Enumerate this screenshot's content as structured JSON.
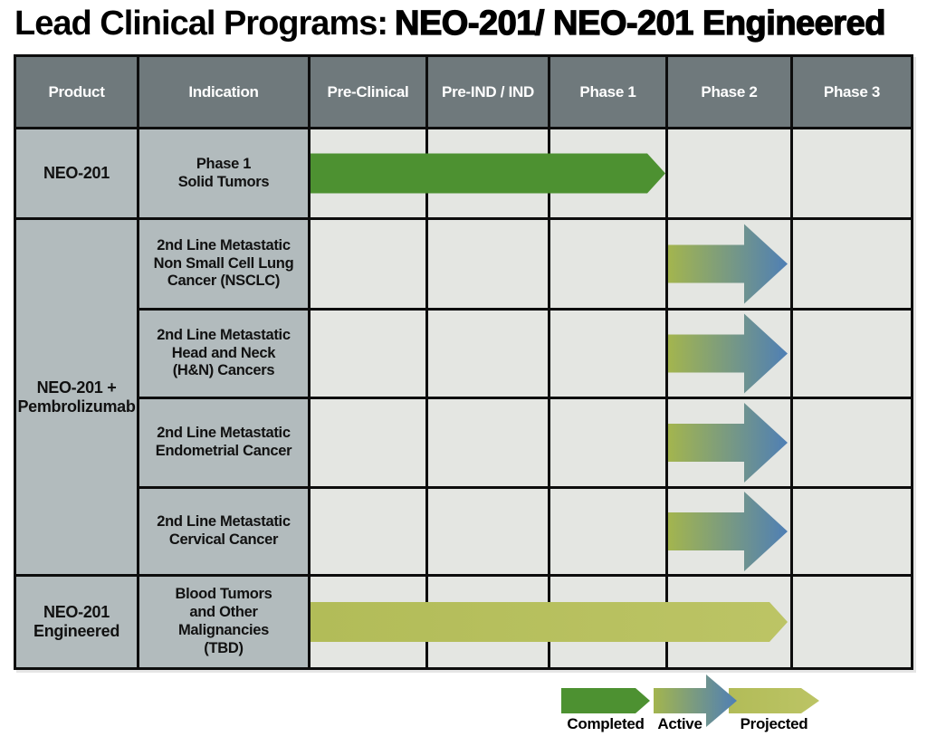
{
  "title": {
    "prefix": "Lead Clinical Programs:",
    "highlight": "NEO-201/ NEO-201 Engineered"
  },
  "colors": {
    "completed": "#4d9131",
    "projected": "#b2bc58",
    "active_start": "#a3b54e",
    "active_end": "#4f7fb5",
    "header_bg": "#6f797c",
    "label_bg": "#b2bbbd",
    "lane_bg": "#e4e6e2",
    "border": "#0d0d0d"
  },
  "table": {
    "columns": [
      "Product",
      "Indication",
      "Pre-Clinical",
      "Pre-IND / IND",
      "Phase 1",
      "Phase 2",
      "Phase 3"
    ],
    "products": [
      {
        "name": "NEO-201",
        "rows": [
          {
            "indication": "Phase 1\nSolid Tumors",
            "status": "completed",
            "start": "Pre-Clinical",
            "end": "Phase 1"
          }
        ]
      },
      {
        "name": "NEO-201 +\nPembrolizumab",
        "rows": [
          {
            "indication": "2nd Line Metastatic\nNon Small Cell Lung\nCancer (NSCLC)",
            "status": "active",
            "start": "Phase 2",
            "end": "Phase 2"
          },
          {
            "indication": "2nd Line Metastatic\nHead and Neck\n(H&N) Cancers",
            "status": "active",
            "start": "Phase 2",
            "end": "Phase 2"
          },
          {
            "indication": "2nd Line Metastatic\nEndometrial Cancer",
            "status": "active",
            "start": "Phase 2",
            "end": "Phase 2"
          },
          {
            "indication": "2nd Line Metastatic\nCervical Cancer",
            "status": "active",
            "start": "Phase 2",
            "end": "Phase 2"
          }
        ]
      },
      {
        "name": "NEO-201\nEngineered",
        "rows": [
          {
            "indication": "Blood Tumors\nand Other\nMalignancies\n(TBD)",
            "status": "projected",
            "start": "Pre-Clinical",
            "end": "Phase 2"
          }
        ]
      }
    ]
  },
  "legend": [
    {
      "label": "Completed",
      "status": "completed"
    },
    {
      "label": "Active",
      "status": "active"
    },
    {
      "label": "Projected",
      "status": "projected"
    }
  ]
}
